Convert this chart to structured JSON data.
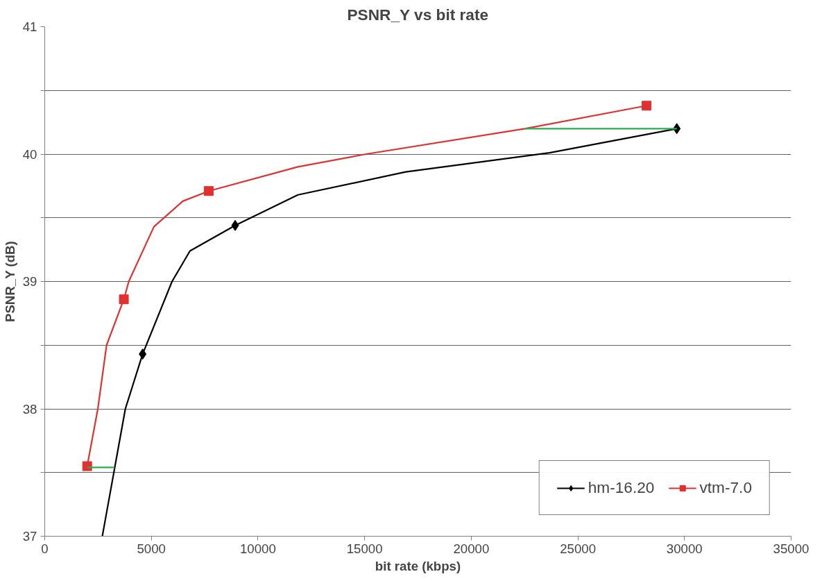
{
  "chart_data": {
    "type": "line",
    "title": "PSNR_Y vs bit rate",
    "xlabel": "bit rate (kbps)",
    "ylabel": "PSNR_Y (dB)",
    "xlim": [
      0,
      35000
    ],
    "xticks": [
      0,
      5000,
      10000,
      15000,
      20000,
      25000,
      30000,
      35000
    ],
    "ylim": [
      37,
      41
    ],
    "yticks": [
      37,
      {
        "value": 37.5,
        "label": null
      },
      38,
      {
        "value": 38.5,
        "label": null
      },
      39,
      {
        "value": 39.5,
        "label": null
      },
      40,
      {
        "value": 40.5,
        "label": null
      },
      41
    ],
    "grid": "y",
    "legend": "bottom right",
    "line_style": "solid",
    "series": [
      {
        "name": "hm-16.20",
        "color": "#000000",
        "marker": "none",
        "x": [
          2700,
          3780,
          4590,
          5970,
          6810,
          8930,
          11870,
          16930,
          23670,
          29640
        ],
        "values": [
          37.0,
          38.0,
          38.43,
          39.0,
          39.24,
          39.44,
          39.68,
          39.86,
          40.01,
          40.2
        ]
      },
      {
        "type": "scatter",
        "color": "#000000",
        "marker": "diamond",
        "x": [
          4590,
          8930,
          29640
        ],
        "values": [
          38.43,
          39.44,
          40.2
        ]
      },
      {
        "name": "vtm-7.0",
        "color": "#e03030",
        "marker": "none",
        "x": [
          1990,
          2490,
          2900,
          3710,
          3940,
          5120,
          6470,
          7690,
          11870,
          15070,
          22520,
          28220
        ],
        "values": [
          37.55,
          38.0,
          38.5,
          38.86,
          39.0,
          39.43,
          39.63,
          39.71,
          39.9,
          40.0,
          40.2,
          40.38
        ]
      },
      {
        "type": "scatter",
        "color": "#e03030",
        "marker": "square",
        "x": [
          1990,
          3710,
          7690,
          28220
        ],
        "values": [
          37.55,
          38.86,
          39.71,
          40.38
        ]
      },
      {
        "color": "#22b14c",
        "marker": "none",
        "x": [
          1990,
          3270
        ],
        "values": [
          37.54,
          37.54
        ]
      },
      {
        "color": "#22b14c",
        "marker": "none",
        "x": [
          22520,
          29640
        ],
        "values": [
          40.2,
          40.2
        ]
      }
    ]
  }
}
